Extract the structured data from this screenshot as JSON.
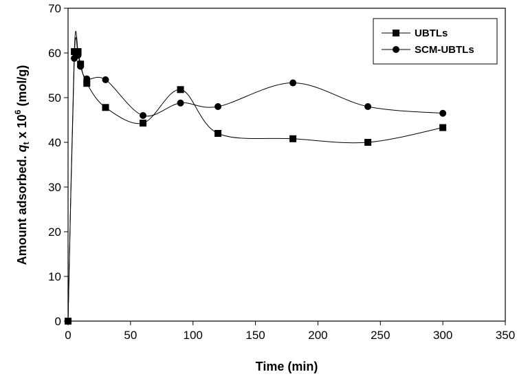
{
  "chart_data": {
    "type": "line",
    "title": "",
    "xlabel": "Time (min)",
    "ylabel": {
      "prefix": "Amount adsorbed. ",
      "var": "q",
      "sub": "t",
      "mid": " x 10",
      "sup": "6",
      "suffix": " (mol/g)"
    },
    "xlim": [
      0,
      350
    ],
    "ylim": [
      0,
      70
    ],
    "xticks": [
      0,
      50,
      100,
      150,
      200,
      250,
      300,
      350
    ],
    "yticks": [
      0,
      10,
      20,
      30,
      40,
      50,
      60,
      70
    ],
    "grid": false,
    "legend_position": "top-right",
    "series": [
      {
        "name": "UBTLs",
        "marker": "square",
        "x": [
          0,
          5,
          8,
          10,
          15,
          30,
          60,
          90,
          120,
          180,
          240,
          300
        ],
        "y": [
          0,
          60.3,
          60.3,
          57.5,
          53.2,
          47.8,
          44.3,
          51.8,
          42.0,
          40.8,
          40.0,
          43.3
        ]
      },
      {
        "name": "SCM-UBTLs",
        "marker": "circle",
        "x": [
          0,
          5,
          8,
          10,
          15,
          30,
          60,
          90,
          120,
          180,
          240,
          300
        ],
        "y": [
          0,
          58.8,
          59.5,
          57.0,
          54.2,
          54.0,
          46.0,
          48.8,
          48.0,
          53.3,
          48.0,
          46.5
        ]
      }
    ]
  }
}
